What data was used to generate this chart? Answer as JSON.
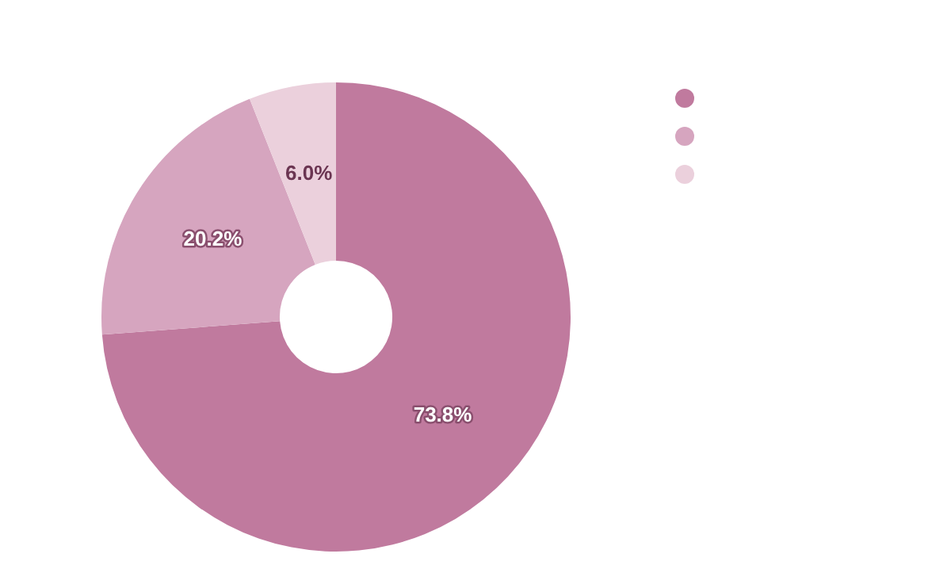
{
  "chart_data": {
    "type": "donut",
    "categories": [
      null,
      null,
      null
    ],
    "values": [
      73.8,
      20.2,
      6.0
    ],
    "colors": [
      "#c07a9e",
      "#d6a5bf",
      "#ebd0dc"
    ],
    "value_labels": [
      "73.8%",
      "20.2%",
      "6.0%"
    ]
  }
}
